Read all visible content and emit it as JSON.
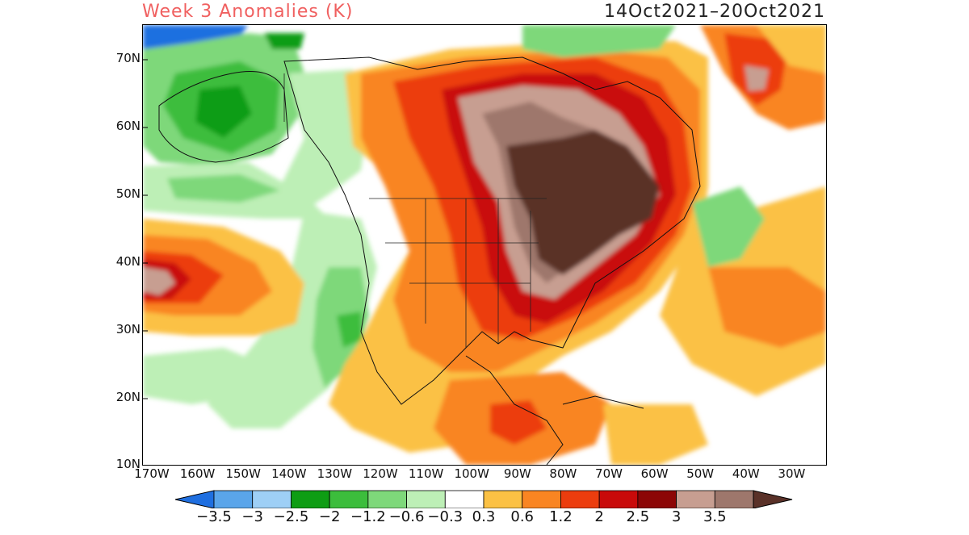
{
  "title": "Week 3 Anomalies (K)",
  "dates": "14Oct2021–20Oct2021",
  "lat_labels": [
    "70N",
    "60N",
    "50N",
    "40N",
    "30N",
    "20N",
    "10N"
  ],
  "lon_labels": [
    "170W",
    "160W",
    "150W",
    "140W",
    "130W",
    "120W",
    "110W",
    "100W",
    "90W",
    "80W",
    "70W",
    "60W",
    "50W",
    "40W",
    "30W"
  ],
  "colorbar": {
    "ticks": [
      "−3.5",
      "−3",
      "−2.5",
      "−2",
      "−1.2",
      "−0.6",
      "−0.3",
      "0.3",
      "0.6",
      "1.2",
      "2",
      "2.5",
      "3",
      "3.5"
    ],
    "colors": [
      "#1f6fe0",
      "#5aa5ea",
      "#9ecff6",
      "#0e9d14",
      "#3cbd3c",
      "#7ed87a",
      "#bdefb6",
      "#ffffff",
      "#fbc144",
      "#f98522",
      "#ec3d0e",
      "#c90a0a",
      "#8c0606",
      "#c79e91",
      "#9e776c",
      "#5a3128"
    ]
  }
}
